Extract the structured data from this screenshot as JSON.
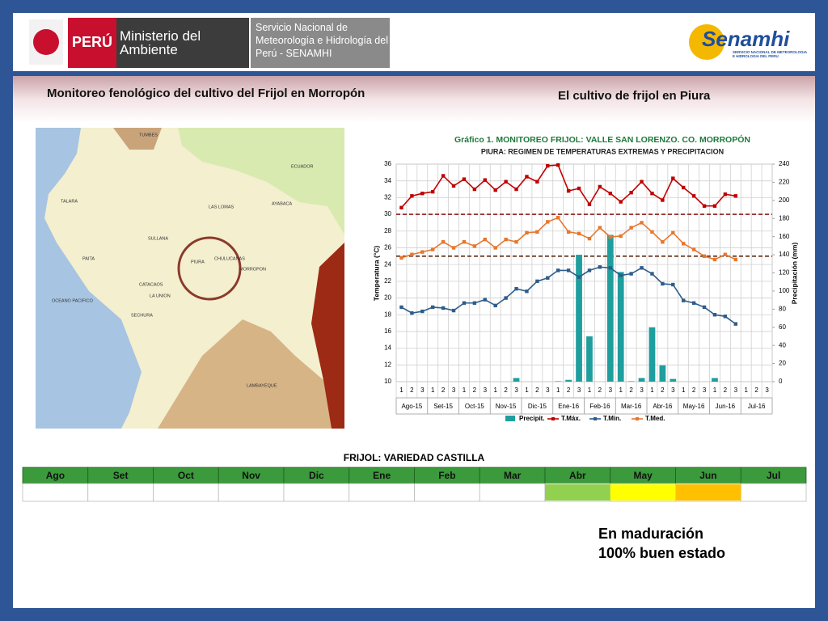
{
  "header": {
    "country": "PERÚ",
    "ministry": "Ministerio del Ambiente",
    "service": "Servicio Nacional de Meteorología e Hidrología del Perú - SENAMHI",
    "brand": "Senamhi",
    "brand_sub": "SERVICIO NACIONAL DE METEOROLOGIA E HIDROLOGIA DEL PERU"
  },
  "titles": {
    "left": "Monitoreo fenológico del cultivo del Frijol en Morropón",
    "right": "El cultivo de frijol en Piura"
  },
  "map": {
    "labels": [
      "TUMBES",
      "ECUADOR",
      "TALARA",
      "LAS LOMAS",
      "AYABACA",
      "SULLANA",
      "PAITA",
      "PIURA",
      "CHULUCANAS",
      "MORROPON",
      "CATACAOS",
      "LA UNION",
      "SECHURA",
      "OCEANO PACIFICO",
      "LAMBAYEQUE"
    ]
  },
  "chart_data": {
    "type": "bar-line",
    "title": "Gráfico 1. MONITOREO FRIJOL: VALLE SAN LORENZO. CO. MORROPÓN",
    "subtitle": "PIURA: REGIMEN DE TEMPERATURAS EXTREMAS Y PRECIPITACION",
    "ylabel": "Temperatura (°C)",
    "y2label": "Precipitación (mm)",
    "categories": [
      "1",
      "2",
      "3",
      "1",
      "2",
      "3",
      "1",
      "2",
      "3",
      "1",
      "2",
      "3",
      "1",
      "2",
      "3",
      "1",
      "2",
      "3",
      "1",
      "2",
      "3",
      "1",
      "2",
      "3",
      "1",
      "2",
      "3",
      "1",
      "2",
      "3",
      "1",
      "2",
      "3",
      "1",
      "2",
      "3"
    ],
    "groups": [
      "Ago-15",
      "Set-15",
      "Oct-15",
      "Nov-15",
      "Dic-15",
      "Ene-16",
      "Feb-16",
      "Mar-16",
      "Abr-16",
      "May-16",
      "Jun-16",
      "Jul-16"
    ],
    "ylim": [
      10,
      36
    ],
    "yticks": [
      10,
      12,
      14,
      16,
      18,
      20,
      22,
      24,
      26,
      28,
      30,
      32,
      34,
      36
    ],
    "y2lim": [
      0,
      240
    ],
    "y2ticks": [
      0,
      20,
      40,
      60,
      80,
      100,
      120,
      140,
      160,
      180,
      200,
      220,
      240
    ],
    "grid": true,
    "legend": "bottom",
    "reference_lines": [
      {
        "value": 30,
        "color": "#8b1a1a"
      },
      {
        "value": 25,
        "color": "#5a2a10"
      }
    ],
    "series": [
      {
        "name": "Precipit.",
        "color": "#1f9e9e",
        "kind": "bar",
        "axis": "y2",
        "values": [
          0,
          0,
          0,
          0,
          0,
          0,
          0,
          0,
          0,
          0,
          0,
          4,
          0,
          0,
          0,
          0.5,
          2,
          140,
          50,
          0,
          162,
          121,
          0.5,
          4,
          60,
          18,
          3,
          0,
          0,
          0,
          4,
          0,
          0,
          null,
          null,
          null
        ]
      },
      {
        "name": "T.Máx.",
        "color": "#c00000",
        "kind": "line",
        "marker": "square",
        "values": [
          30.8,
          32.2,
          32.5,
          32.7,
          34.6,
          33.4,
          34.2,
          33.0,
          34.1,
          32.9,
          33.9,
          33.0,
          34.5,
          33.9,
          35.8,
          35.9,
          32.8,
          33.1,
          31.2,
          33.3,
          32.5,
          31.5,
          32.6,
          33.9,
          32.5,
          31.7,
          34.3,
          33.2,
          32.2,
          31.0,
          31.0,
          32.4,
          32.2,
          null,
          null,
          null
        ]
      },
      {
        "name": "T.Min.",
        "color": "#2e5c8a",
        "kind": "line",
        "marker": "square",
        "values": [
          18.9,
          18.2,
          18.4,
          18.9,
          18.8,
          18.5,
          19.4,
          19.4,
          19.8,
          19.1,
          20.0,
          21.1,
          20.8,
          22.0,
          22.4,
          23.3,
          23.3,
          22.5,
          23.3,
          23.7,
          23.6,
          22.7,
          22.9,
          23.6,
          22.9,
          21.7,
          21.6,
          19.7,
          19.4,
          18.9,
          18.0,
          17.8,
          16.9,
          null,
          null,
          null
        ]
      },
      {
        "name": "T.Med.",
        "color": "#e8772e",
        "kind": "line",
        "marker": "square",
        "values": [
          24.8,
          25.2,
          25.5,
          25.8,
          26.7,
          26.0,
          26.7,
          26.2,
          27.0,
          26.0,
          27.0,
          26.7,
          27.8,
          27.9,
          29.1,
          29.6,
          27.9,
          27.7,
          27.1,
          28.4,
          27.3,
          27.4,
          28.4,
          29.0,
          27.9,
          26.7,
          27.8,
          26.5,
          25.8,
          25.0,
          24.6,
          25.2,
          24.6,
          null,
          null,
          null
        ]
      }
    ]
  },
  "table": {
    "title": "FRIJOL: VARIEDAD CASTILLA",
    "months": [
      "Ago",
      "Set",
      "Oct",
      "Nov",
      "Dic",
      "Ene",
      "Feb",
      "Mar",
      "Abr",
      "May",
      "Jun",
      "Jul"
    ],
    "stages": [
      {
        "month": "Abr",
        "color": "#92d050"
      },
      {
        "month": "May",
        "color": "#ffff00"
      },
      {
        "month": "Jun",
        "color": "#ffc000"
      }
    ]
  },
  "status": [
    "En maduración",
    "100% buen estado"
  ]
}
